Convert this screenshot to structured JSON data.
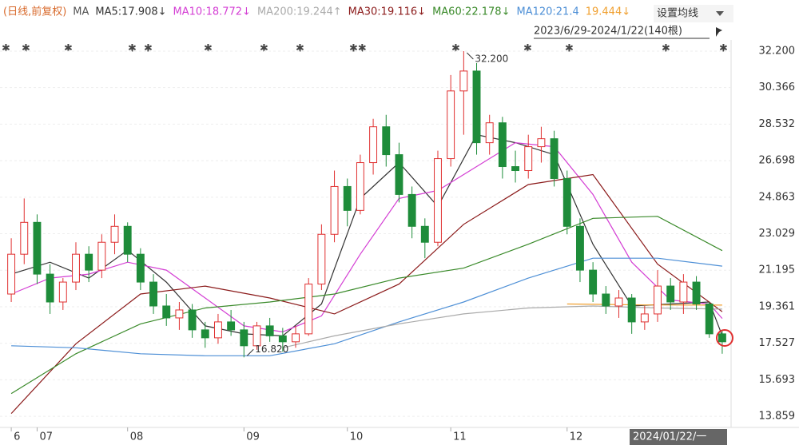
{
  "chart_data": {
    "type": "candlestick",
    "header": [
      {
        "label": "(日线,前复权)",
        "color": "#d86a2c"
      },
      {
        "label": "MA",
        "color": "#555"
      },
      {
        "label": "MA5:17.908↓",
        "color": "#333"
      },
      {
        "label": "MA10:18.772↓",
        "color": "#d43fd4"
      },
      {
        "label": "MA200:19.244↑",
        "color": "#aaaaaa"
      },
      {
        "label": "MA30:19.116↓",
        "color": "#8b1a1a"
      },
      {
        "label": "MA60:22.178↓",
        "color": "#3a8a2a"
      },
      {
        "label": "MA120:21.4",
        "color": "#4d8fd6"
      },
      {
        "label": "19.444↓",
        "color": "#f0a030"
      }
    ],
    "settings_button": "设置均线",
    "range_label": "2023/6/29-2024/1/22(140根)",
    "categories": [
      "6",
      null,
      "07",
      null,
      null,
      null,
      null,
      null,
      null,
      "08",
      null,
      null,
      null,
      null,
      null,
      null,
      null,
      null,
      "09",
      null,
      null,
      null,
      null,
      null,
      null,
      null,
      "10",
      null,
      null,
      null,
      null,
      null,
      null,
      null,
      "11",
      null,
      null,
      null,
      null,
      null,
      null,
      null,
      null,
      "12",
      null,
      null,
      null,
      null,
      null,
      null,
      null,
      null,
      null,
      null,
      null,
      "2024/01/22/一"
    ],
    "open": [
      20.0,
      22.0,
      23.6,
      21.0,
      19.6,
      20.6,
      22.0,
      21.2,
      22.6,
      23.4,
      22.0,
      20.6,
      19.4,
      18.8,
      19.2,
      18.2,
      17.8,
      18.6,
      18.2,
      17.4,
      18.4,
      17.9,
      17.6,
      18.0,
      20.5,
      23.0,
      25.4,
      24.2,
      26.6,
      28.4,
      27.0,
      25.0,
      23.4,
      22.6,
      26.8,
      30.2,
      31.2,
      27.6,
      28.6,
      26.4,
      26.2,
      27.4,
      27.8,
      25.8,
      23.4,
      21.2,
      20.0,
      19.4,
      19.8,
      18.6,
      19.0,
      20.4,
      19.6,
      20.6,
      19.5,
      18.0
    ],
    "high": [
      22.8,
      24.8,
      24.0,
      21.5,
      20.8,
      22.6,
      22.4,
      23.0,
      24.0,
      23.6,
      22.3,
      21.0,
      20.0,
      19.6,
      19.5,
      18.6,
      19.0,
      19.2,
      18.6,
      18.6,
      18.8,
      18.3,
      18.4,
      20.8,
      23.5,
      26.2,
      25.8,
      27.0,
      28.8,
      29.0,
      27.6,
      25.4,
      23.8,
      27.2,
      31.0,
      32.2,
      31.6,
      29.0,
      28.9,
      27.2,
      28.0,
      28.4,
      28.2,
      26.2,
      23.8,
      21.6,
      20.4,
      20.2,
      20.0,
      19.4,
      21.2,
      20.8,
      21.0,
      20.9,
      19.6,
      18.2
    ],
    "low": [
      19.6,
      21.5,
      20.5,
      19.0,
      19.2,
      20.2,
      20.6,
      20.8,
      22.0,
      21.6,
      20.2,
      19.0,
      18.4,
      18.2,
      17.8,
      17.3,
      17.5,
      17.9,
      16.82,
      17.2,
      17.6,
      17.1,
      17.3,
      17.9,
      20.2,
      22.6,
      23.4,
      24.0,
      26.0,
      26.4,
      24.6,
      22.8,
      21.8,
      22.4,
      26.4,
      28.0,
      27.0,
      27.0,
      25.8,
      25.6,
      25.8,
      26.6,
      25.4,
      23.0,
      20.6,
      19.6,
      19.0,
      18.8,
      18.0,
      18.2,
      18.6,
      19.2,
      19.0,
      19.2,
      17.8,
      17.0
    ],
    "close": [
      22.0,
      23.6,
      21.0,
      19.6,
      20.6,
      22.0,
      21.2,
      22.6,
      23.4,
      22.0,
      20.6,
      19.4,
      18.8,
      19.2,
      18.2,
      17.8,
      18.6,
      18.2,
      17.4,
      18.4,
      17.9,
      17.6,
      18.0,
      20.5,
      23.0,
      25.4,
      24.2,
      26.6,
      28.4,
      27.0,
      25.0,
      23.4,
      22.6,
      26.8,
      30.2,
      31.2,
      27.6,
      28.6,
      26.4,
      26.2,
      27.4,
      27.8,
      25.8,
      23.4,
      21.2,
      20.0,
      19.4,
      19.8,
      18.6,
      19.0,
      20.4,
      19.6,
      20.6,
      19.5,
      18.0,
      17.6
    ],
    "up_color": "#e03030",
    "down_color": "#1e8c3a",
    "lines": [
      {
        "color": "#333333",
        "x": [
          0,
          3,
          6,
          9,
          12,
          15,
          18,
          21,
          24,
          27,
          30,
          33,
          36,
          39,
          42,
          45,
          48,
          51,
          54,
          55
        ],
        "values": [
          21.0,
          21.6,
          20.8,
          22.2,
          20.6,
          18.4,
          18.0,
          17.9,
          19.5,
          24.8,
          26.6,
          24.4,
          28.0,
          27.6,
          27.0,
          22.5,
          19.4,
          19.5,
          19.6,
          17.908
        ]
      },
      {
        "color": "#d43fd4",
        "x": [
          0,
          3,
          6,
          9,
          12,
          15,
          18,
          21,
          24,
          27,
          30,
          33,
          36,
          39,
          42,
          45,
          48,
          51,
          54,
          55
        ],
        "values": [
          20.0,
          20.8,
          21.0,
          21.6,
          21.2,
          19.8,
          18.4,
          18.1,
          18.9,
          22.0,
          24.8,
          25.2,
          26.4,
          27.6,
          27.4,
          25.0,
          21.6,
          19.7,
          19.5,
          18.772
        ]
      },
      {
        "color": "#8b1a1a",
        "x": [
          0,
          5,
          10,
          15,
          20,
          25,
          30,
          35,
          40,
          45,
          50,
          55
        ],
        "values": [
          14.0,
          17.5,
          20.0,
          20.4,
          19.8,
          19.0,
          20.5,
          23.5,
          25.5,
          26.0,
          21.5,
          19.116
        ]
      },
      {
        "color": "#3a8a2a",
        "x": [
          0,
          5,
          10,
          15,
          20,
          25,
          30,
          35,
          40,
          45,
          50,
          55
        ],
        "values": [
          15.0,
          17.0,
          18.5,
          19.3,
          19.6,
          20.0,
          20.8,
          21.3,
          22.5,
          23.8,
          23.9,
          22.178
        ]
      },
      {
        "color": "#4d8fd6",
        "x": [
          0,
          5,
          10,
          15,
          20,
          25,
          30,
          35,
          40,
          45,
          50,
          55
        ],
        "values": [
          17.4,
          17.3,
          17.0,
          16.9,
          16.9,
          17.5,
          18.6,
          19.6,
          20.8,
          21.8,
          21.8,
          21.4
        ]
      },
      {
        "color": "#aaaaaa",
        "x": [
          21,
          25,
          30,
          35,
          40,
          45,
          50,
          55
        ],
        "values": [
          17.3,
          17.9,
          18.5,
          19.0,
          19.3,
          19.4,
          19.3,
          19.244
        ]
      },
      {
        "color": "#f0a030",
        "x": [
          43,
          49,
          55
        ],
        "values": [
          19.5,
          19.45,
          19.444
        ]
      }
    ],
    "annotations": [
      {
        "x": 35,
        "value": 32.2,
        "label": "32.200"
      },
      {
        "x": 18,
        "value": 16.82,
        "label": "16.820"
      }
    ],
    "ylim": [
      13.3,
      32.44
    ],
    "yticks": [
      {
        "value": 32.2,
        "label": "32.200"
      },
      30.366,
      28.532,
      26.698,
      24.863,
      23.029,
      21.195,
      19.361,
      17.527,
      15.693,
      13.859
    ],
    "grid": true
  }
}
